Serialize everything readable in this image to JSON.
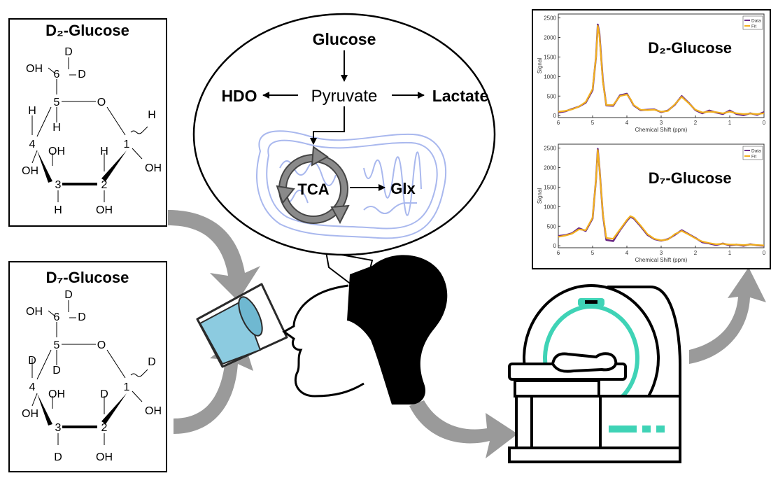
{
  "molecule_d2": {
    "title": "D₂-Glucose",
    "atoms": {
      "c6_top_d": "D",
      "c6_oh": "OH",
      "c6_label": "6",
      "c6_right_d": "D",
      "c5_label": "5",
      "ring_o": "O",
      "c1_label": "1",
      "c5_sub_a": "H",
      "c5_sub_b": "H",
      "c1_sub": "H",
      "c4_label": "4",
      "c4_oh": "OH",
      "c3_oh_top": "OH",
      "c2_sub_top": "H",
      "c1_oh": "OH",
      "c3_label": "3",
      "c2_label": "2",
      "c3_sub_bottom": "H",
      "c2_oh": "OH"
    }
  },
  "molecule_d7": {
    "title": "D₇-Glucose",
    "atoms": {
      "c6_top_d": "D",
      "c6_oh": "OH",
      "c6_label": "6",
      "c6_right_d": "D",
      "c5_label": "5",
      "ring_o": "O",
      "c1_label": "1",
      "c5_sub_a": "D",
      "c5_sub_b": "D",
      "c1_sub": "D",
      "c4_label": "4",
      "c4_oh": "OH",
      "c3_oh_top": "OH",
      "c2_sub_top": "D",
      "c1_oh": "OH",
      "c3_label": "3",
      "c2_label": "2",
      "c3_sub_bottom": "D",
      "c2_oh": "OH"
    }
  },
  "pathway": {
    "glucose": "Glucose",
    "pyruvate": "Pyruvate",
    "hdo": "HDO",
    "lactate": "Lactate",
    "tca": "TCA",
    "glx": "Glx"
  },
  "colors": {
    "data_line": "#6a2a86",
    "fit_line": "#f2b01e",
    "mri_accent": "#3fd3b6",
    "water": "#8ccbe0",
    "mitochondria": "#a9b8ee",
    "arrow_gray": "#9a9a9a"
  },
  "chart_data": [
    {
      "type": "line",
      "title": "D₂-Glucose",
      "xlabel": "Chemical Shift (ppm)",
      "ylabel": "Signal",
      "xlim": [
        6,
        0
      ],
      "ylim": [
        -50,
        2600
      ],
      "x_ticks": [
        "6",
        "5",
        "4",
        "3",
        "2",
        "1",
        "0"
      ],
      "y_ticks": [
        "0",
        "500",
        "1000",
        "1500",
        "2000",
        "2500"
      ],
      "legend": {
        "position": "top-right",
        "entries": [
          "Data",
          "Fit"
        ]
      },
      "x": [
        6.0,
        5.8,
        5.6,
        5.4,
        5.2,
        5.0,
        4.9,
        4.85,
        4.8,
        4.7,
        4.6,
        4.4,
        4.2,
        4.0,
        3.9,
        3.8,
        3.6,
        3.4,
        3.2,
        3.0,
        2.8,
        2.6,
        2.4,
        2.2,
        2.0,
        1.8,
        1.6,
        1.4,
        1.2,
        1.0,
        0.8,
        0.6,
        0.4,
        0.2,
        0.0
      ],
      "series": [
        {
          "name": "Data",
          "values": [
            80,
            110,
            170,
            230,
            330,
            650,
            1500,
            2330,
            2100,
            900,
            260,
            250,
            520,
            560,
            420,
            260,
            140,
            150,
            160,
            90,
            130,
            280,
            500,
            330,
            140,
            60,
            130,
            80,
            40,
            130,
            40,
            10,
            60,
            20,
            90
          ]
        },
        {
          "name": "Fit",
          "values": [
            100,
            120,
            160,
            230,
            350,
            680,
            1500,
            2300,
            2050,
            870,
            270,
            270,
            500,
            540,
            430,
            270,
            150,
            140,
            150,
            100,
            120,
            290,
            480,
            320,
            150,
            80,
            100,
            90,
            60,
            100,
            60,
            40,
            50,
            40,
            60
          ]
        }
      ]
    },
    {
      "type": "line",
      "title": "D₇-Glucose",
      "xlabel": "Chemical Shift (ppm)",
      "ylabel": "Signal",
      "xlim": [
        6,
        0
      ],
      "ylim": [
        -50,
        2600
      ],
      "x_ticks": [
        "6",
        "5",
        "4",
        "3",
        "2",
        "1",
        "0"
      ],
      "y_ticks": [
        "0",
        "500",
        "1000",
        "1500",
        "2000",
        "2500"
      ],
      "legend": {
        "position": "top-right",
        "entries": [
          "Data",
          "Fit"
        ]
      },
      "x": [
        6.0,
        5.8,
        5.6,
        5.4,
        5.2,
        5.0,
        4.9,
        4.85,
        4.8,
        4.7,
        4.6,
        4.4,
        4.2,
        4.0,
        3.9,
        3.8,
        3.6,
        3.4,
        3.2,
        3.0,
        2.8,
        2.6,
        2.4,
        2.2,
        2.0,
        1.8,
        1.6,
        1.4,
        1.2,
        1.0,
        0.8,
        0.6,
        0.4,
        0.2,
        0.0
      ],
      "series": [
        {
          "name": "Data",
          "values": [
            250,
            270,
            320,
            450,
            380,
            700,
            1700,
            2480,
            2000,
            800,
            150,
            120,
            400,
            640,
            740,
            700,
            500,
            280,
            170,
            130,
            170,
            280,
            400,
            300,
            200,
            90,
            60,
            20,
            60,
            10,
            30,
            0,
            40,
            10,
            0
          ]
        },
        {
          "name": "Fit",
          "values": [
            230,
            260,
            310,
            420,
            400,
            720,
            1700,
            2450,
            1980,
            820,
            200,
            180,
            420,
            660,
            760,
            720,
            520,
            300,
            180,
            140,
            160,
            300,
            380,
            290,
            190,
            110,
            70,
            40,
            50,
            30,
            30,
            20,
            30,
            20,
            10
          ]
        }
      ]
    }
  ]
}
